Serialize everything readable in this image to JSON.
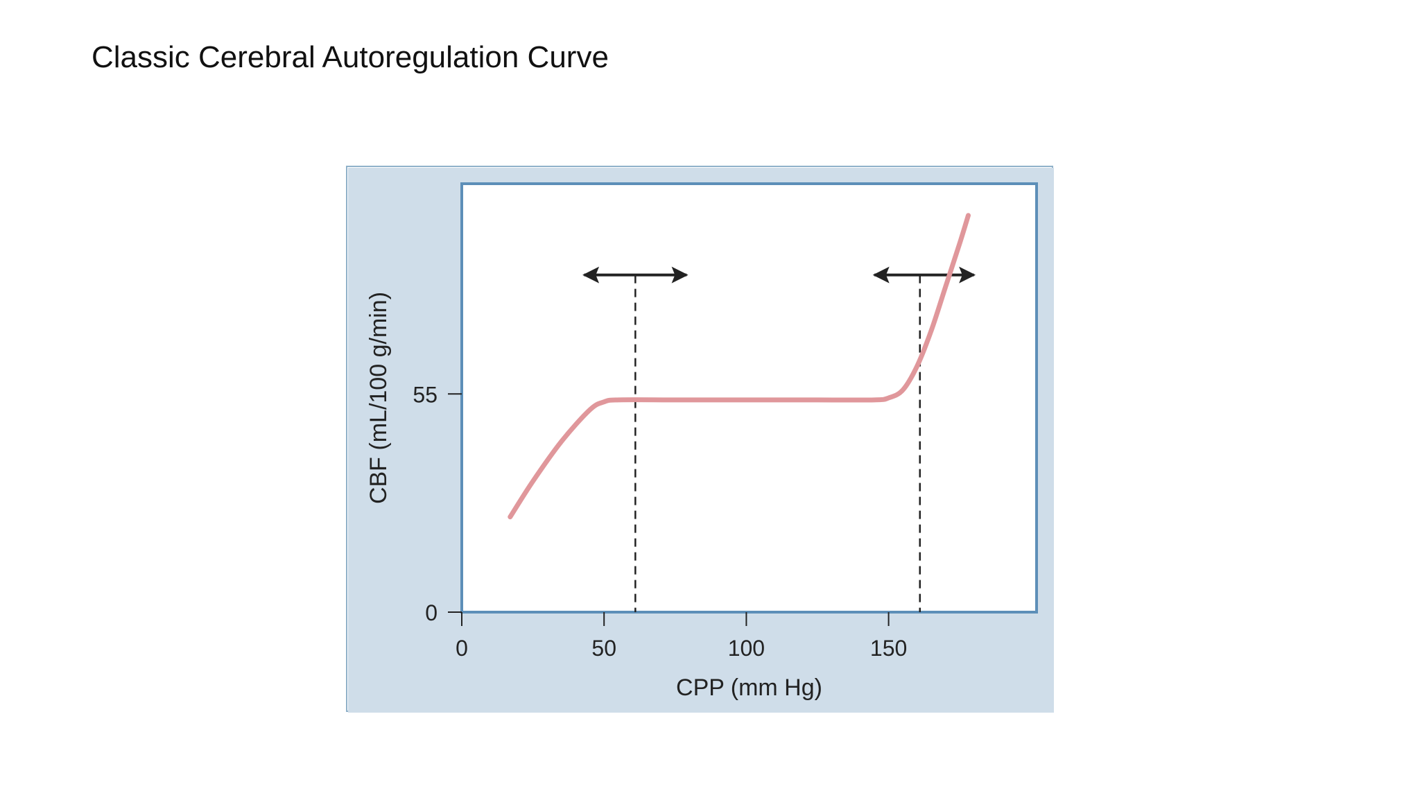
{
  "page": {
    "title": "Classic Cerebral Autoregulation Curve"
  },
  "colors": {
    "panel_background": "#cfdde9",
    "plot_background": "#ffffff",
    "plot_border": "#5d8fb8",
    "curve": "#e0979b",
    "markers": "#222222"
  },
  "chart_data": {
    "type": "line",
    "title": "",
    "xlabel": "CPP (mm Hg)",
    "ylabel": "CBF (mL/100 g/min)",
    "xlim": [
      0,
      202
    ],
    "ylim": [
      0,
      108
    ],
    "x_ticks": [
      0,
      50,
      100,
      150
    ],
    "x_tick_labels": [
      "0",
      "50",
      "100",
      "150"
    ],
    "y_ticks": [
      0,
      55
    ],
    "y_tick_labels": [
      "0",
      "55"
    ],
    "grid": false,
    "series": [
      {
        "name": "",
        "x": [
          17,
          25,
          35,
          45,
          50,
          55,
          75,
          100,
          125,
          145,
          150,
          155,
          160,
          165,
          170,
          175,
          178
        ],
        "y": [
          24,
          33,
          43,
          51,
          53,
          53.5,
          53.5,
          53.5,
          53.5,
          53.5,
          54,
          56,
          62,
          71,
          82,
          93,
          100
        ]
      }
    ],
    "annotations": [
      {
        "type": "dashed-vertical-line",
        "x": 61,
        "y_top": 85
      },
      {
        "type": "double-arrow",
        "x_center": 61,
        "x_from": 43,
        "x_to": 79,
        "y": 85
      },
      {
        "type": "dashed-vertical-line",
        "x": 161,
        "y_top": 85
      },
      {
        "type": "double-arrow",
        "x_center": 161,
        "x_from": 145,
        "x_to": 180,
        "y": 85
      }
    ]
  }
}
